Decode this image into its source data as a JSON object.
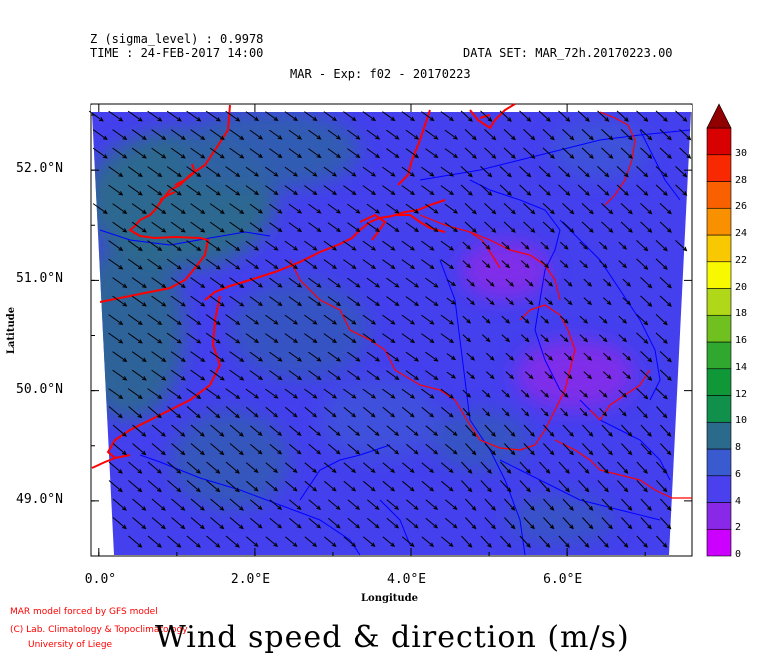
{
  "header": {
    "z_level": "Z (sigma_level) : 0.9978",
    "time": "TIME : 24-FEB-2017 14:00",
    "dataset": "DATA SET: MAR_72h.20170223.00",
    "title": "MAR - Exp: f02 - 20170223"
  },
  "footer": {
    "credit_line1": "MAR model forced by GFS model",
    "credit_line2": "(C) Lab. Climatology & Topoclimatology",
    "credit_line3": "University of Liege",
    "big_title": "Wind speed & direction (m/s)"
  },
  "colors": {
    "bg_field": "#4440ee",
    "teal": "#2a6a8a",
    "purple": "#8a28e8",
    "coast": "#ff0000",
    "river": "#0000ff"
  },
  "chart_data": {
    "type": "heatmap",
    "title": "MAR - Exp: f02 - 20170223",
    "xlabel": "Longitude",
    "ylabel": "Latitude",
    "xlim": [
      -0.1,
      7.6
    ],
    "ylim": [
      48.5,
      52.6
    ],
    "x_ticks": [
      {
        "value": 0,
        "label": "0.0°"
      },
      {
        "value": 2,
        "label": "2.0°E"
      },
      {
        "value": 4,
        "label": "4.0°E"
      },
      {
        "value": 6,
        "label": "6.0°E"
      }
    ],
    "y_ticks": [
      {
        "value": 52,
        "label": "52.0°N"
      },
      {
        "value": 51,
        "label": "51.0°N"
      },
      {
        "value": 50,
        "label": "50.0°N"
      },
      {
        "value": 49,
        "label": "49.0°N"
      }
    ],
    "colorbar": {
      "min": 0,
      "max": 30,
      "step": 2,
      "labels": [
        "0",
        "2",
        "4",
        "6",
        "8",
        "10",
        "12",
        "14",
        "16",
        "18",
        "20",
        "22",
        "24",
        "26",
        "28",
        "30"
      ],
      "colors": [
        "#cc00ff",
        "#8a28e8",
        "#4a40ee",
        "#3a5ad0",
        "#2a6a8a",
        "#10904a",
        "#109838",
        "#30a830",
        "#70c020",
        "#b0d818",
        "#f8f800",
        "#f8c800",
        "#f89000",
        "#f86000",
        "#f82800",
        "#d80000"
      ],
      "overflow_color": "#900000"
    },
    "wind_field": {
      "direction": "northwesterly (toward south-east)",
      "speed_range": [
        2,
        8
      ]
    }
  }
}
